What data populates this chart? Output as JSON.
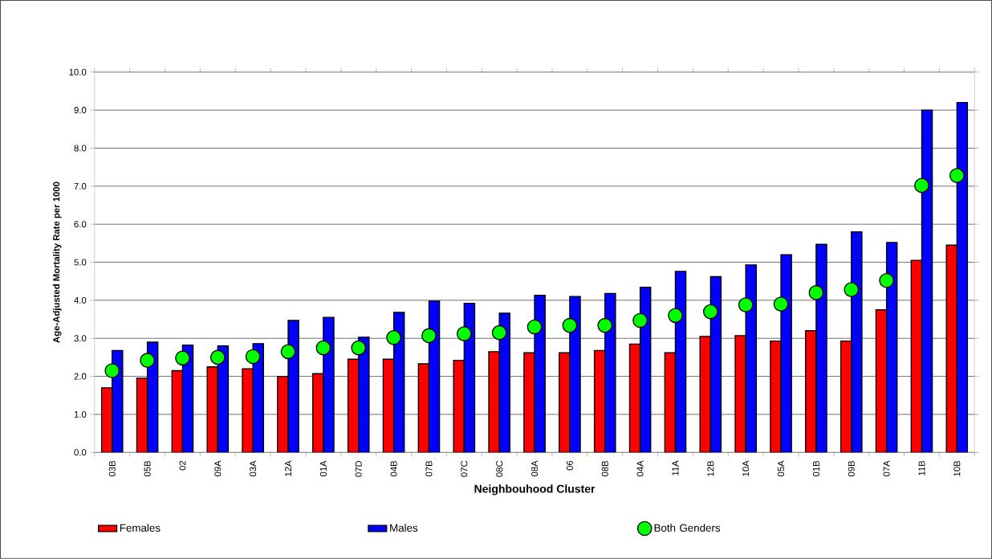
{
  "chart_data": {
    "type": "bar",
    "xlabel": "Neighbouhood Cluster",
    "ylabel": "Age-Adjusted Mortality Rate per 1000",
    "categories": [
      "03B",
      "05B",
      "02",
      "09A",
      "03A",
      "12A",
      "01A",
      "07D",
      "04B",
      "07B",
      "07C",
      "08C",
      "08A",
      "06",
      "08B",
      "04A",
      "11A",
      "12B",
      "10A",
      "05A",
      "01B",
      "09B",
      "07A",
      "11B",
      "10B"
    ],
    "series": [
      {
        "name": "Females",
        "type": "bar",
        "color": "#ff0000",
        "values": [
          1.7,
          1.95,
          2.15,
          2.25,
          2.2,
          2.0,
          2.07,
          2.45,
          2.45,
          2.33,
          2.42,
          2.65,
          2.62,
          2.62,
          2.68,
          2.85,
          2.62,
          3.05,
          3.07,
          2.93,
          3.2,
          2.93,
          3.75,
          5.05,
          5.45
        ]
      },
      {
        "name": "Males",
        "type": "bar",
        "color": "#0000ff",
        "values": [
          2.68,
          2.9,
          2.82,
          2.8,
          2.86,
          3.47,
          3.55,
          3.03,
          3.68,
          3.98,
          3.92,
          3.66,
          4.13,
          4.1,
          4.18,
          4.34,
          4.76,
          4.62,
          4.93,
          5.2,
          5.47,
          5.8,
          5.52,
          9.0,
          9.2
        ]
      },
      {
        "name": "Both Genders",
        "type": "scatter",
        "color": "#00ff00",
        "marker": "circle",
        "values": [
          2.15,
          2.42,
          2.48,
          2.5,
          2.52,
          2.65,
          2.75,
          2.75,
          3.02,
          3.07,
          3.12,
          3.15,
          3.3,
          3.34,
          3.34,
          3.47,
          3.6,
          3.7,
          3.88,
          3.9,
          4.2,
          4.28,
          4.52,
          7.02,
          7.28
        ]
      }
    ],
    "ylim": [
      0,
      10
    ],
    "yticks": [
      {
        "value": 0,
        "label": "0.0"
      },
      {
        "value": 1,
        "label": "1.0"
      },
      {
        "value": 2,
        "label": "2.0"
      },
      {
        "value": 3,
        "label": "3.0"
      },
      {
        "value": 4,
        "label": "4.0"
      },
      {
        "value": 5,
        "label": "5.0"
      },
      {
        "value": 6,
        "label": "6.0"
      },
      {
        "value": 7,
        "label": "7.0"
      },
      {
        "value": 8,
        "label": "8.0"
      },
      {
        "value": 9,
        "label": "9.0"
      },
      {
        "value": 10,
        "label": "10.0"
      }
    ],
    "grid": "y",
    "legend": "bottom"
  }
}
